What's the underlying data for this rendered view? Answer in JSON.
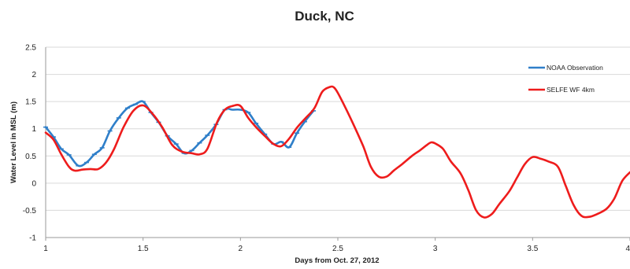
{
  "chart_data": {
    "type": "line",
    "title": "Duck, NC",
    "xlabel": "Days from Oct. 27, 2012",
    "ylabel": "Water Level in MSL (m)",
    "xlim": [
      1,
      4
    ],
    "ylim": [
      -1,
      2.5
    ],
    "x_ticks": [
      1,
      1.5,
      2,
      2.5,
      3,
      3.5,
      4
    ],
    "x_tick_labels": [
      "1",
      "1.5",
      "2",
      "2.5",
      "3",
      "3.5",
      "4"
    ],
    "y_ticks": [
      -1,
      -0.5,
      0,
      0.5,
      1,
      1.5,
      2,
      2.5
    ],
    "y_tick_labels": [
      "-1",
      "-0.5",
      "0",
      "0.5",
      "1",
      "1.5",
      "2",
      "2.5"
    ],
    "grid": true,
    "legend_position": "top-right",
    "series": [
      {
        "name": "NOAA Observation",
        "color": "#2f7fc9",
        "markers": true,
        "x": [
          1.0,
          1.04,
          1.08,
          1.12,
          1.167,
          1.21,
          1.25,
          1.29,
          1.33,
          1.375,
          1.42,
          1.46,
          1.5,
          1.54,
          1.58,
          1.625,
          1.67,
          1.71,
          1.75,
          1.79,
          1.83,
          1.875,
          1.92,
          1.96,
          2.0,
          2.04,
          2.08,
          2.125,
          2.17,
          2.21,
          2.25,
          2.29,
          2.33,
          2.375
        ],
        "y": [
          1.03,
          0.85,
          0.63,
          0.52,
          0.32,
          0.38,
          0.53,
          0.65,
          0.96,
          1.2,
          1.38,
          1.45,
          1.5,
          1.3,
          1.12,
          0.87,
          0.72,
          0.55,
          0.6,
          0.74,
          0.88,
          1.08,
          1.35,
          1.35,
          1.35,
          1.3,
          1.1,
          0.9,
          0.72,
          0.76,
          0.66,
          0.92,
          1.13,
          1.33
        ]
      },
      {
        "name": "SELFE WF 4km",
        "color": "#ee1c1c",
        "markers": false,
        "x": [
          1.0,
          1.04,
          1.08,
          1.12,
          1.15,
          1.19,
          1.23,
          1.27,
          1.31,
          1.35,
          1.4,
          1.45,
          1.5,
          1.55,
          1.6,
          1.65,
          1.7,
          1.75,
          1.79,
          1.83,
          1.88,
          1.92,
          1.96,
          2.0,
          2.04,
          2.08,
          2.13,
          2.17,
          2.21,
          2.25,
          2.29,
          2.33,
          2.38,
          2.42,
          2.46,
          2.48,
          2.5,
          2.54,
          2.58,
          2.63,
          2.67,
          2.71,
          2.75,
          2.79,
          2.83,
          2.88,
          2.92,
          2.96,
          2.98,
          3.0,
          3.04,
          3.08,
          3.13,
          3.17,
          3.21,
          3.25,
          3.29,
          3.33,
          3.38,
          3.42,
          3.46,
          3.5,
          3.54,
          3.58,
          3.63,
          3.67,
          3.71,
          3.75,
          3.79,
          3.83,
          3.88,
          3.92,
          3.96,
          4.0
        ],
        "y": [
          0.93,
          0.8,
          0.53,
          0.3,
          0.23,
          0.25,
          0.26,
          0.26,
          0.38,
          0.62,
          1.03,
          1.33,
          1.43,
          1.27,
          1.02,
          0.7,
          0.58,
          0.55,
          0.53,
          0.63,
          1.12,
          1.35,
          1.42,
          1.42,
          1.2,
          1.03,
          0.85,
          0.72,
          0.68,
          0.82,
          1.02,
          1.18,
          1.38,
          1.68,
          1.77,
          1.76,
          1.66,
          1.38,
          1.08,
          0.68,
          0.3,
          0.12,
          0.12,
          0.24,
          0.35,
          0.5,
          0.6,
          0.71,
          0.75,
          0.73,
          0.63,
          0.4,
          0.18,
          -0.13,
          -0.5,
          -0.63,
          -0.57,
          -0.38,
          -0.15,
          0.1,
          0.35,
          0.48,
          0.45,
          0.4,
          0.3,
          -0.05,
          -0.4,
          -0.6,
          -0.62,
          -0.57,
          -0.47,
          -0.28,
          0.04,
          0.2
        ]
      }
    ]
  }
}
